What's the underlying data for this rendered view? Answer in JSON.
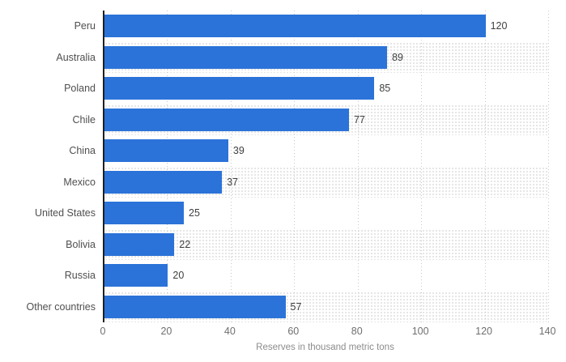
{
  "chart_data": {
    "type": "bar",
    "orientation": "horizontal",
    "title": "",
    "categories": [
      "Peru",
      "Australia",
      "Poland",
      "Chile",
      "China",
      "Mexico",
      "United States",
      "Bolivia",
      "Russia",
      "Other countries"
    ],
    "values": [
      120,
      89,
      85,
      77,
      39,
      37,
      25,
      22,
      20,
      57
    ],
    "xlabel": "Reserves in thousand metric tons",
    "ylabel": "",
    "xlim": [
      0,
      140
    ],
    "xticks": [
      0,
      20,
      40,
      60,
      80,
      100,
      120,
      140
    ],
    "grid": "vertical-dotted",
    "legend": "none",
    "striped_rows": "alternate (2nd, 4th, ... rows have dotted hatch background)",
    "colors": {
      "bar": "#2b73d8",
      "stripe_dot": "#e2e2e2",
      "gridline": "#c9c9c9",
      "axis_line": "#1f1f1f",
      "category_label": "#4f4f4f",
      "value_label": "#3f3f3f",
      "tick_label": "#6f6f6f",
      "axis_title": "#8c8c8c",
      "background": "#ffffff"
    }
  }
}
